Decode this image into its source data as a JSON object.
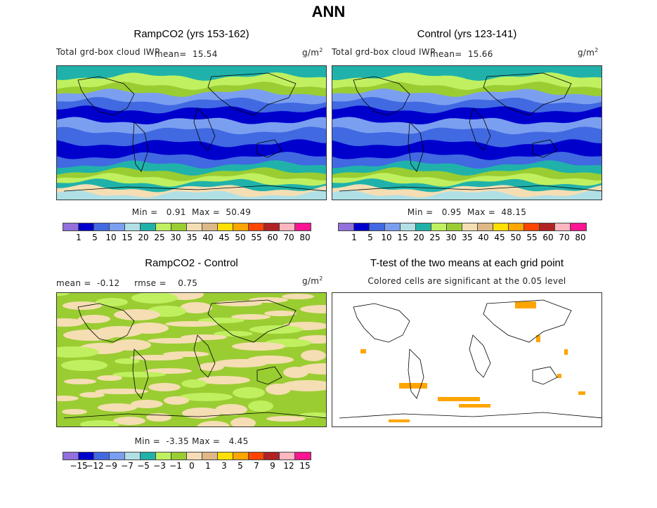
{
  "title": "ANN",
  "panels": [
    {
      "title": "RampCO2 (yrs 153-162)",
      "variable": "Total grd-box cloud IWP",
      "mean_label": "mean=",
      "mean": "15.54",
      "units": "g/m",
      "units_exp": "2",
      "min_label": "Min =",
      "min": "0.91",
      "max_label": "Max =",
      "max": "50.49"
    },
    {
      "title": "Control (yrs 123-141)",
      "variable": "Total grd-box cloud IWP",
      "mean_label": "mean=",
      "mean": "15.66",
      "units": "g/m",
      "units_exp": "2",
      "min_label": "Min =",
      "min": "0.95",
      "max_label": "Max =",
      "max": "48.15"
    },
    {
      "title": "RampCO2 - Control",
      "mean_label": "mean =",
      "mean": "-0.12",
      "rmse_label": "rmse =",
      "rmse": "0.75",
      "units": "g/m",
      "units_exp": "2",
      "min_label": "Min =",
      "min": "-3.35",
      "max_label": "Max =",
      "max": "4.45"
    },
    {
      "title": "T-test of the two means at each grid point",
      "subtitle": "Colored cells are significant at the 0.05 level"
    }
  ],
  "colorbar_colors": [
    "#9370db",
    "#0000cd",
    "#4169e1",
    "#7b9ff0",
    "#b0e0e6",
    "#20b2aa",
    "#c0f060",
    "#9acd32",
    "#f5deb3",
    "#deb887",
    "#ffe000",
    "#ffa500",
    "#ff4500",
    "#b22222",
    "#ffb6c1",
    "#ff1493"
  ],
  "colorbar_levels": [
    "1",
    "5",
    "10",
    "15",
    "20",
    "25",
    "30",
    "35",
    "40",
    "45",
    "50",
    "55",
    "60",
    "70",
    "80"
  ],
  "diff_levels": [
    "−15",
    "−12",
    "−9",
    "−7",
    "−5",
    "−3",
    "−1",
    "0",
    "1",
    "3",
    "5",
    "7",
    "9",
    "12",
    "15"
  ],
  "significance_color": "#ffa500"
}
